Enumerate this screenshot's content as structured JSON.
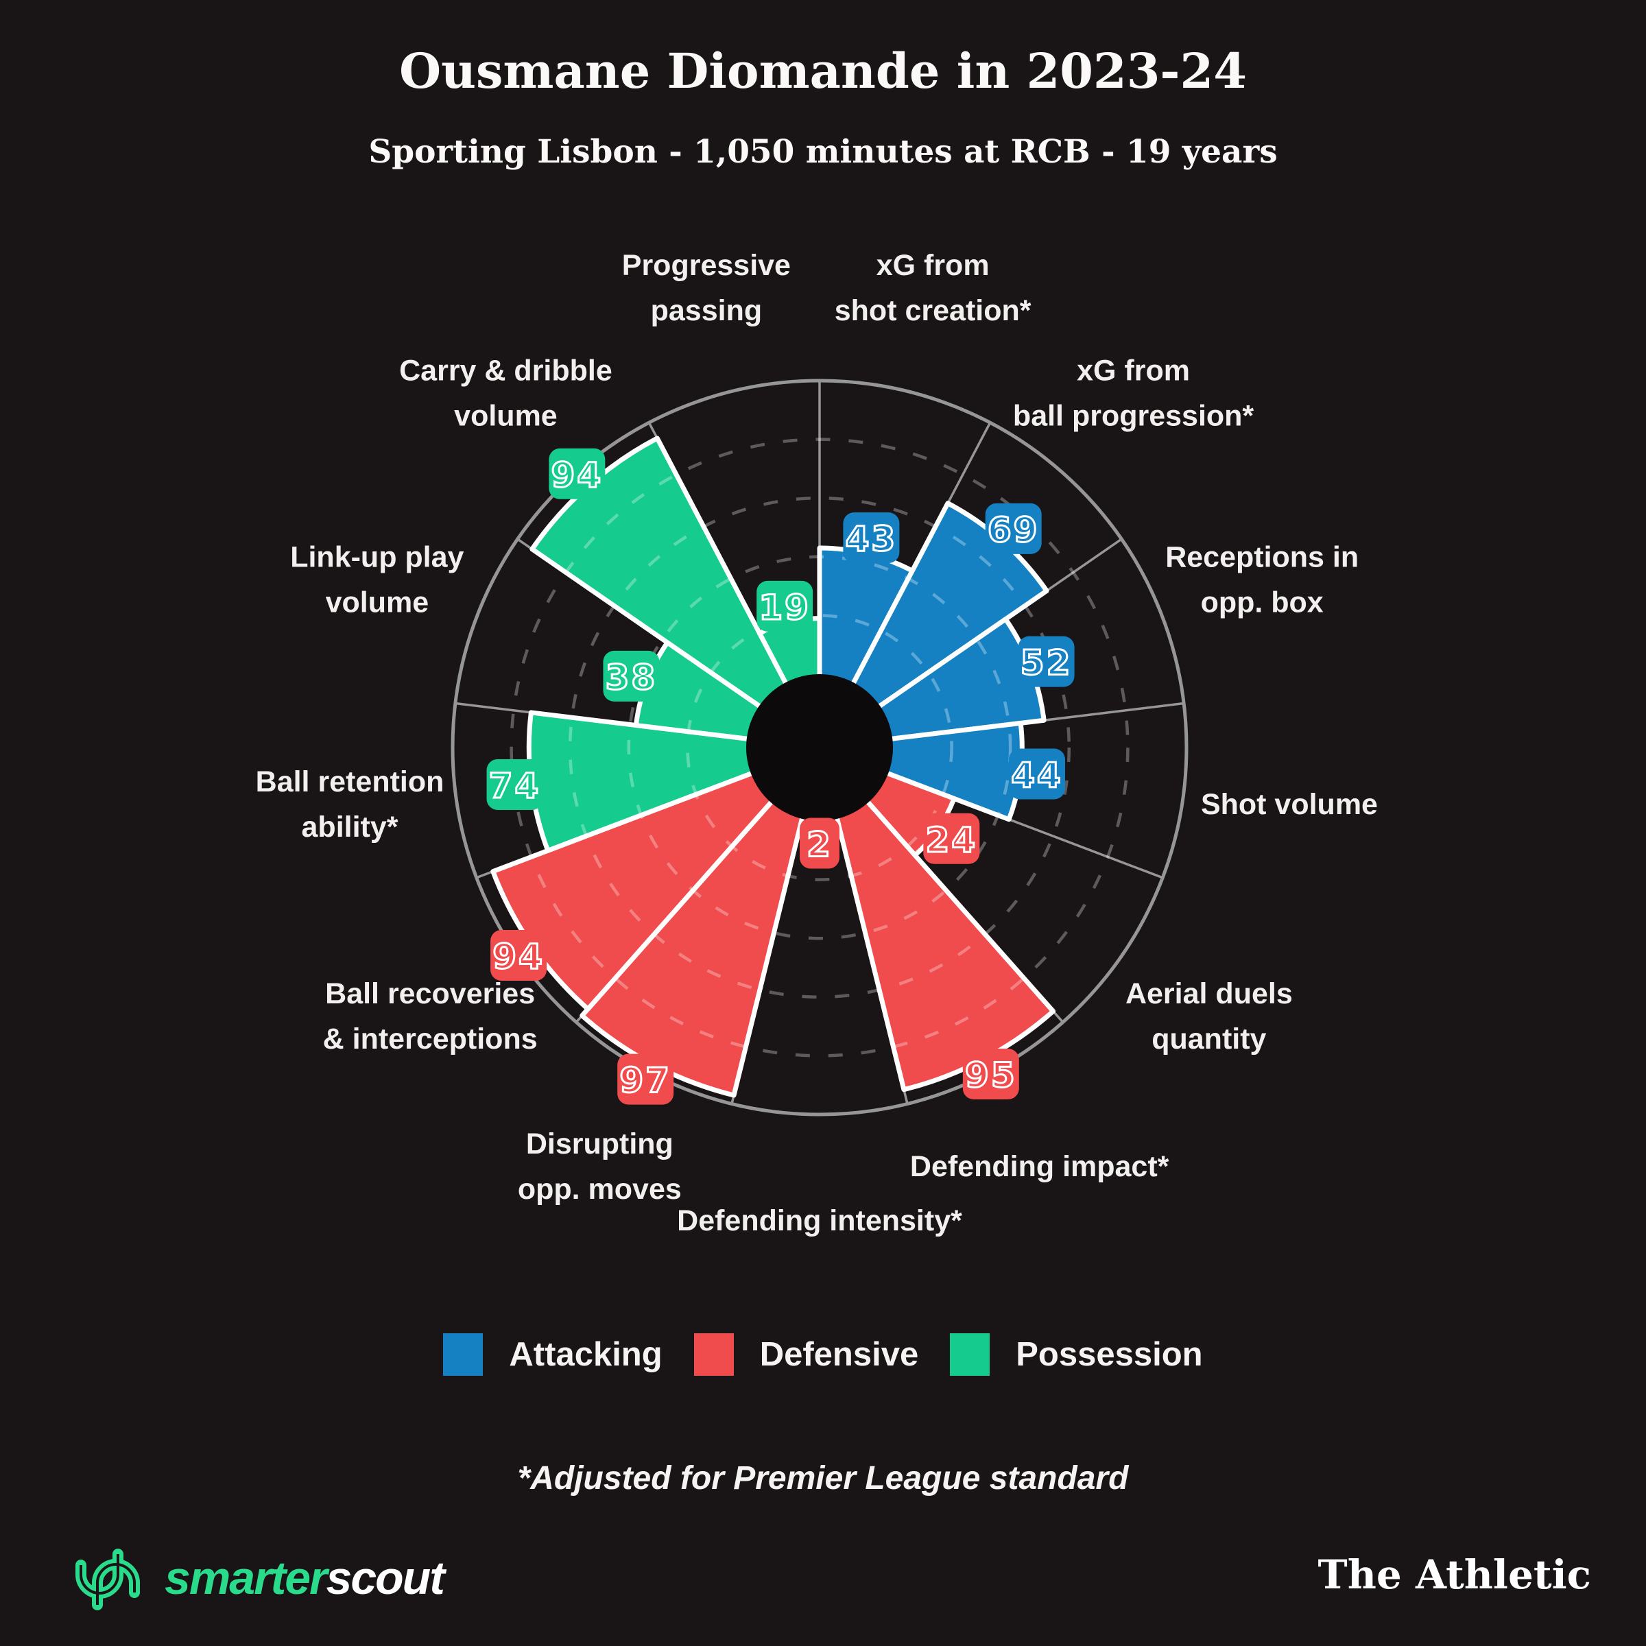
{
  "header": {
    "title": "Ousmane Diomande in 2023-24",
    "subtitle": "Sporting Lisbon - 1,050 minutes at RCB - 19 years"
  },
  "colors": {
    "attacking": "#1581C3",
    "defensive": "#F04B4D",
    "possession": "#15CB8E",
    "background": "#191415",
    "center_hole": "#0C0A0B",
    "grid": "#969696",
    "ring_dash": "rgba(255,255,255,0.30)",
    "wedge_border": "#FFFFFF",
    "label_text": "#F2F0EF"
  },
  "chart_data": {
    "type": "polar_bar",
    "title": "Ousmane Diomande in 2023-24",
    "scale_min": 0,
    "scale_max": 100,
    "start_angle_deg": 0,
    "clockwise": true,
    "dashed_rings_at": [
      20,
      40,
      60,
      80
    ],
    "categories": [
      "xG from shot creation*",
      "xG from ball progression*",
      "Receptions in opp. box",
      "Shot volume",
      "Aerial duels quantity",
      "Defending impact*",
      "Defending intensity*",
      "Disrupting opp. moves",
      "Ball recoveries & interceptions",
      "Ball retention ability*",
      "Link-up play volume",
      "Carry & dribble volume",
      "Progressive passing"
    ],
    "values": [
      43,
      69,
      52,
      44,
      24,
      95,
      2,
      97,
      94,
      74,
      38,
      94,
      19
    ],
    "groups": [
      "attacking",
      "attacking",
      "attacking",
      "attacking",
      "defensive",
      "defensive",
      "defensive",
      "defensive",
      "defensive",
      "possession",
      "possession",
      "possession",
      "possession"
    ],
    "label_lines": [
      [
        "xG from",
        "shot creation*"
      ],
      [
        "xG from",
        "ball progression*"
      ],
      [
        "Receptions in",
        "opp. box"
      ],
      [
        "Shot volume"
      ],
      [
        "Aerial duels",
        "quantity"
      ],
      [
        "Defending impact*"
      ],
      [
        "Defending intensity*"
      ],
      [
        "Disrupting",
        "opp. moves"
      ],
      [
        "Ball recoveries",
        "& interceptions"
      ],
      [
        "Ball retention",
        "ability*"
      ],
      [
        "Link-up play",
        "volume"
      ],
      [
        "Carry & dribble",
        "volume"
      ],
      [
        "Progressive",
        "passing"
      ]
    ]
  },
  "legend": {
    "items": [
      {
        "label": "Attacking",
        "group": "attacking"
      },
      {
        "label": "Defensive",
        "group": "defensive"
      },
      {
        "label": "Possession",
        "group": "possession"
      }
    ]
  },
  "footnote": {
    "text": "*Adjusted for Premier League standard"
  },
  "branding": {
    "smarterscout_green": "smarter",
    "smarterscout_white": "scout",
    "athletic": "The Athletic"
  }
}
